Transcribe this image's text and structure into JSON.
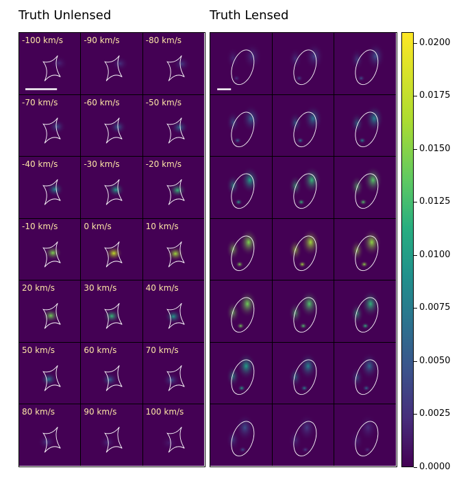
{
  "panels": {
    "left_title": "Truth Unlensed",
    "right_title": "Truth Lensed"
  },
  "chart_data": {
    "type": "heatmap",
    "title": "",
    "grid": {
      "rows": 7,
      "cols": 3
    },
    "velocities_kms": [
      -100,
      -90,
      -80,
      -70,
      -60,
      -50,
      -40,
      -30,
      -20,
      -10,
      0,
      10,
      20,
      30,
      40,
      50,
      60,
      70,
      80,
      90,
      100
    ],
    "velocity_labels": [
      "-100 km/s",
      "-90 km/s",
      "-80 km/s",
      "-70 km/s",
      "-60 km/s",
      "-50 km/s",
      "-40 km/s",
      "-30 km/s",
      "-20 km/s",
      "-10 km/s",
      "0 km/s",
      "10 km/s",
      "20 km/s",
      "30 km/s",
      "40 km/s",
      "50 km/s",
      "60 km/s",
      "70 km/s",
      "80 km/s",
      "90 km/s",
      "100 km/s"
    ],
    "unlensed_peak": [
      0.002,
      0.0028,
      0.0035,
      0.0048,
      0.006,
      0.0072,
      0.0095,
      0.0115,
      0.0135,
      0.0165,
      0.0185,
      0.0175,
      0.016,
      0.0135,
      0.011,
      0.0085,
      0.0065,
      0.0048,
      0.0032,
      0.0022,
      0.0015
    ],
    "lensed_peak": [
      0.003,
      0.004,
      0.005,
      0.0065,
      0.0078,
      0.009,
      0.0115,
      0.0135,
      0.015,
      0.0165,
      0.0175,
      0.017,
      0.016,
      0.0148,
      0.0132,
      0.0115,
      0.009,
      0.007,
      0.005,
      0.0035,
      0.0025
    ],
    "colorbar": {
      "colormap": "viridis",
      "range": [
        0.0,
        0.0205
      ],
      "ticks": [
        0.0,
        0.0025,
        0.005,
        0.0075,
        0.01,
        0.0125,
        0.015,
        0.0175,
        0.02
      ],
      "tick_labels": [
        "0.0000",
        "0.0025",
        "0.0050",
        "0.0075",
        "0.0100",
        "0.0125",
        "0.0150",
        "0.0175",
        "0.0200"
      ]
    },
    "overlays": {
      "unlensed": "caustic (astroid)",
      "lensed": "critical curve (ellipse)",
      "color": "#ffffff"
    }
  }
}
